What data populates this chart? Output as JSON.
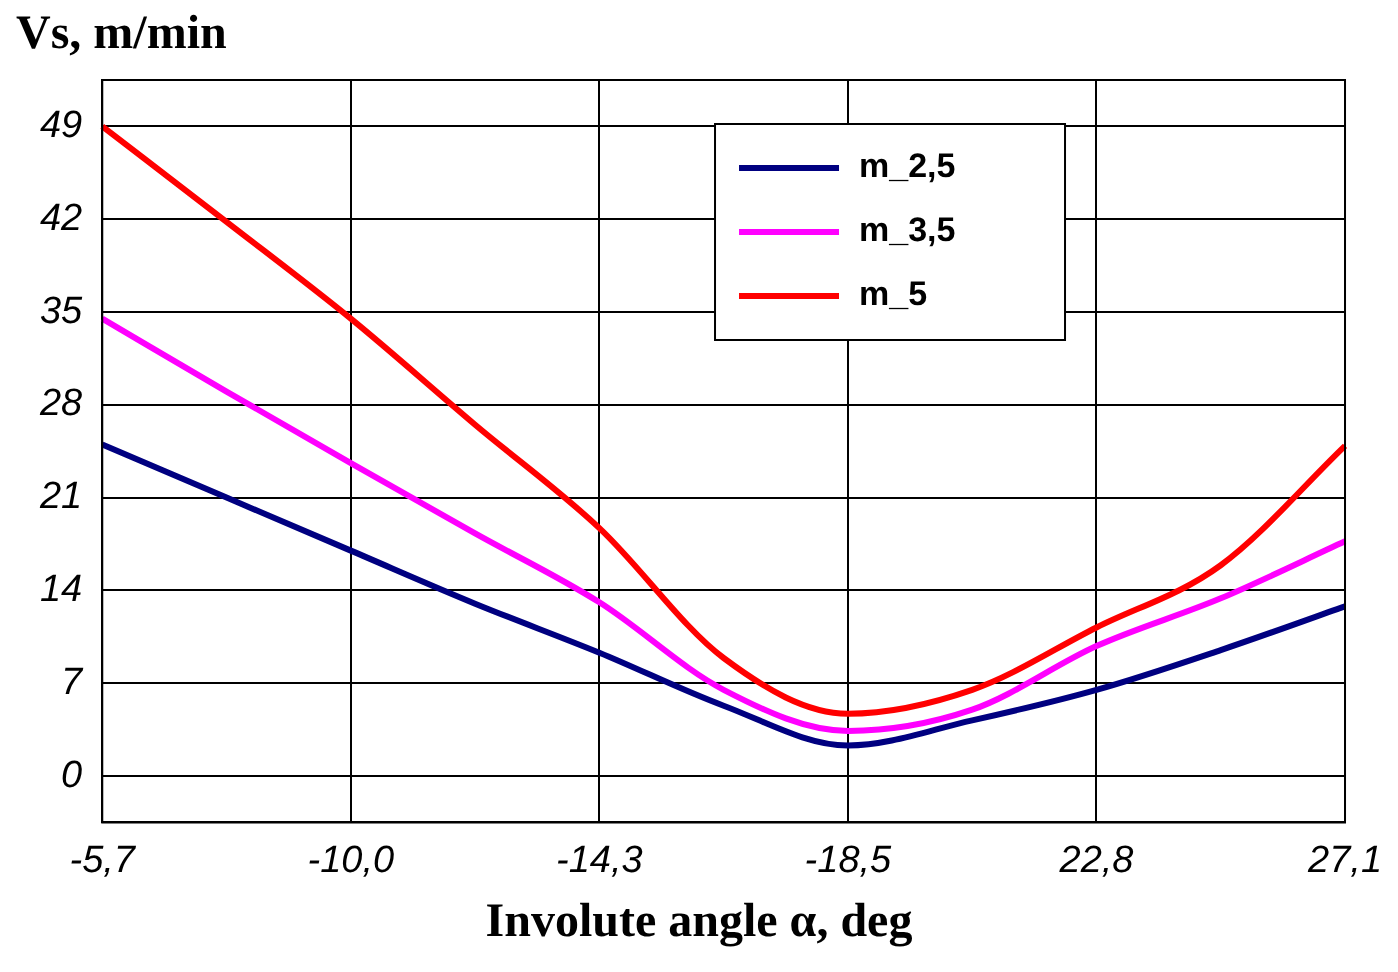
{
  "chart_data": {
    "type": "line",
    "ylabel": "Vs, m/min",
    "xlabel": "Involute angle α, deg",
    "categories": [
      "-5,7",
      null,
      "-10,0",
      null,
      "-14,3",
      null,
      "-18,5",
      null,
      "22,8",
      null,
      "27,1"
    ],
    "series": [
      {
        "name": "m_2,5",
        "color": "#000080",
        "values": [
          25,
          21,
          17,
          13,
          9.3,
          5.3,
          2.3,
          4.2,
          6.5,
          9.5,
          12.8
        ]
      },
      {
        "name": "m_3,5",
        "color": "#ff00ff",
        "values": [
          34.5,
          29,
          23.6,
          18.3,
          13.1,
          6.5,
          3.4,
          5,
          9.8,
          13.4,
          17.7
        ]
      },
      {
        "name": "m_5",
        "color": "#ff0000",
        "values": [
          49,
          41.8,
          34.5,
          26.5,
          18.7,
          8.9,
          4.7,
          6.5,
          11.2,
          15.9,
          24.9
        ]
      }
    ],
    "ylim": [
      -3.5,
      52.5
    ],
    "yticks": [
      0,
      7,
      14,
      21,
      28,
      35,
      42,
      49
    ],
    "grid": true,
    "legend": "top right",
    "marker": "none",
    "line_style": "solid"
  }
}
